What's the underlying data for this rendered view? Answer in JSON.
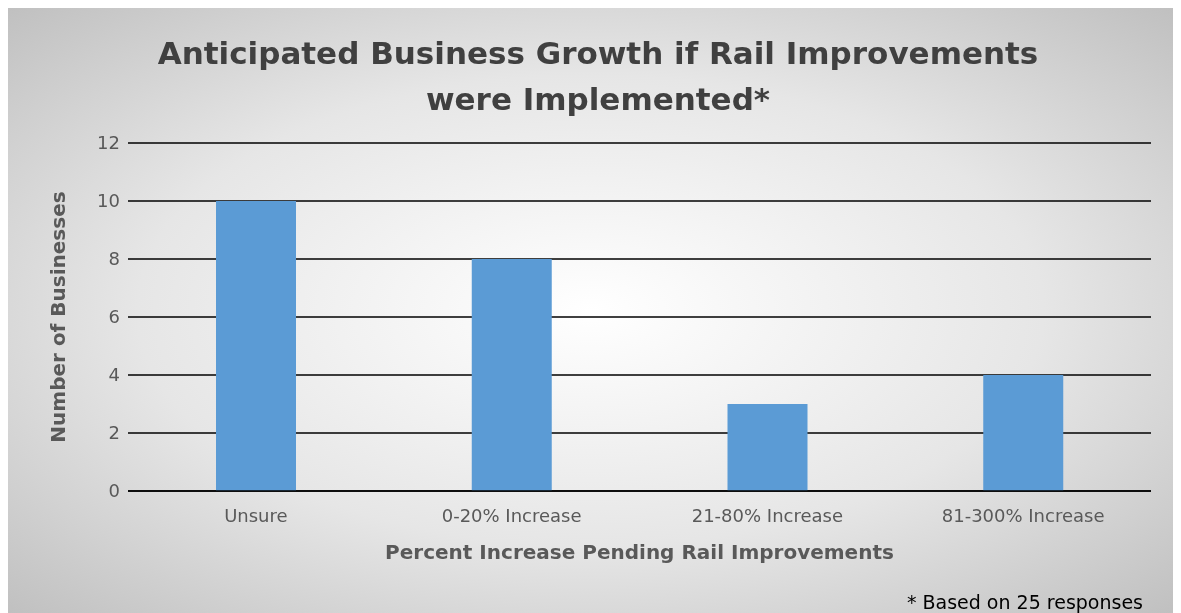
{
  "chart_data": {
    "type": "bar",
    "title": "Anticipated Business Growth if Rail Improvements were Implemented*",
    "xlabel": "Percent Increase Pending Rail Improvements",
    "ylabel": "Number of Businesses",
    "categories": [
      "Unsure",
      "0-20% Increase",
      "21-80% Increase",
      "81-300% Increase"
    ],
    "values": [
      10,
      8,
      3,
      4
    ],
    "color": "#5b9bd5",
    "ylim": [
      0,
      12
    ],
    "yticks": [
      0,
      2,
      4,
      6,
      8,
      10,
      12
    ],
    "grid": "y",
    "annotations": [
      "* Based on 25 responses"
    ]
  }
}
